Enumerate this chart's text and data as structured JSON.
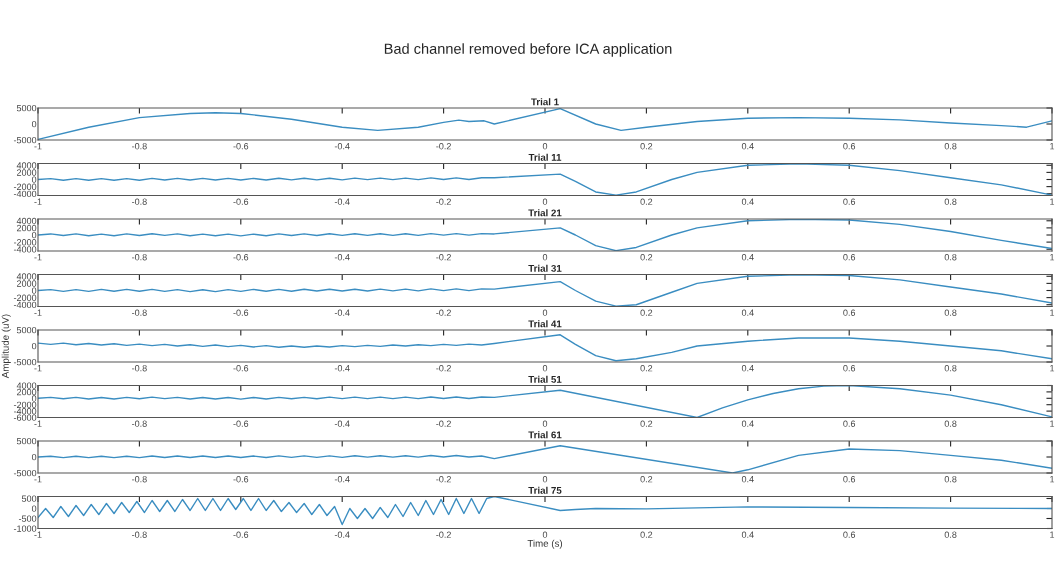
{
  "chart_data": [
    {
      "type": "line",
      "title": "Trial 1",
      "annotations": [
        "Bad channel removed before ICA application"
      ],
      "xlim": [
        -1,
        1
      ],
      "xticks": [
        -1,
        -0.8,
        -0.6,
        -0.4,
        -0.2,
        0,
        0.2,
        0.4,
        0.6,
        0.8,
        1
      ],
      "ylim": [
        -5000,
        5000
      ],
      "yticks": [
        -5000,
        0,
        5000
      ],
      "series": [
        {
          "color": "#3a8dc1",
          "x": [
            -1,
            -0.9,
            -0.8,
            -0.7,
            -0.65,
            -0.6,
            -0.5,
            -0.4,
            -0.33,
            -0.25,
            -0.2,
            -0.17,
            -0.15,
            -0.12,
            -0.1,
            0.03,
            0.1,
            0.15,
            0.2,
            0.3,
            0.4,
            0.5,
            0.6,
            0.7,
            0.8,
            0.9,
            0.95,
            1.0
          ],
          "values": [
            -4800,
            -1000,
            2000,
            3300,
            3500,
            3300,
            1500,
            -1000,
            -2000,
            -1000,
            500,
            1200,
            800,
            1000,
            0,
            4800,
            0,
            -2000,
            -1000,
            800,
            1800,
            2000,
            1800,
            1300,
            300,
            -500,
            -1000,
            1000
          ]
        }
      ]
    },
    {
      "type": "line",
      "title": "Trial 11",
      "xlim": [
        -1,
        1
      ],
      "xticks": [
        -1,
        -0.8,
        -0.6,
        -0.4,
        -0.2,
        0,
        0.2,
        0.4,
        0.6,
        0.8,
        1
      ],
      "ylim": [
        -4500,
        4500
      ],
      "yticks": [
        -4000,
        -2000,
        0,
        2000,
        4000
      ],
      "series": [
        {
          "color": "#3a8dc1",
          "x": [
            -1,
            -0.975,
            -0.95,
            -0.925,
            -0.9,
            -0.875,
            -0.85,
            -0.825,
            -0.8,
            -0.775,
            -0.75,
            -0.725,
            -0.7,
            -0.675,
            -0.65,
            -0.625,
            -0.6,
            -0.575,
            -0.55,
            -0.525,
            -0.5,
            -0.475,
            -0.45,
            -0.425,
            -0.4,
            -0.375,
            -0.35,
            -0.325,
            -0.3,
            -0.275,
            -0.25,
            -0.225,
            -0.2,
            -0.175,
            -0.15,
            -0.125,
            -0.1,
            0.03,
            0.06,
            0.1,
            0.14,
            0.18,
            0.25,
            0.3,
            0.4,
            0.5,
            0.6,
            0.7,
            0.8,
            0.9,
            1.0
          ],
          "values": [
            0,
            250,
            -200,
            250,
            -200,
            250,
            -200,
            250,
            -200,
            300,
            -150,
            300,
            -150,
            300,
            -150,
            300,
            -150,
            300,
            -150,
            350,
            -100,
            350,
            -100,
            350,
            -100,
            400,
            -50,
            400,
            -50,
            400,
            -50,
            450,
            0,
            450,
            0,
            500,
            500,
            1500,
            -500,
            -3500,
            -4400,
            -3500,
            0,
            2000,
            4000,
            4400,
            4000,
            2500,
            500,
            -1500,
            -4400
          ]
        }
      ]
    },
    {
      "type": "line",
      "title": "Trial 21",
      "xlim": [
        -1,
        1
      ],
      "xticks": [
        -1,
        -0.8,
        -0.6,
        -0.4,
        -0.2,
        0,
        0.2,
        0.4,
        0.6,
        0.8,
        1
      ],
      "ylim": [
        -4500,
        4500
      ],
      "yticks": [
        -4000,
        -2000,
        0,
        2000,
        4000
      ],
      "series": [
        {
          "color": "#3a8dc1",
          "x": [
            -1,
            -0.975,
            -0.95,
            -0.925,
            -0.9,
            -0.875,
            -0.85,
            -0.825,
            -0.8,
            -0.775,
            -0.75,
            -0.725,
            -0.7,
            -0.675,
            -0.65,
            -0.625,
            -0.6,
            -0.575,
            -0.55,
            -0.525,
            -0.5,
            -0.475,
            -0.45,
            -0.425,
            -0.4,
            -0.375,
            -0.35,
            -0.325,
            -0.3,
            -0.275,
            -0.25,
            -0.225,
            -0.2,
            -0.175,
            -0.15,
            -0.125,
            -0.1,
            0.03,
            0.06,
            0.1,
            0.14,
            0.18,
            0.25,
            0.3,
            0.4,
            0.5,
            0.6,
            0.7,
            0.8,
            0.9,
            1.0
          ],
          "values": [
            0,
            300,
            -150,
            300,
            -200,
            250,
            -200,
            300,
            -150,
            350,
            -100,
            300,
            -200,
            250,
            -200,
            250,
            -250,
            250,
            -200,
            300,
            -150,
            300,
            -150,
            350,
            -100,
            350,
            -100,
            350,
            -100,
            350,
            -100,
            400,
            -50,
            400,
            -50,
            400,
            300,
            2000,
            0,
            -3000,
            -4400,
            -3500,
            0,
            2000,
            4000,
            4400,
            4200,
            3000,
            1000,
            -1500,
            -3800
          ]
        }
      ]
    },
    {
      "type": "line",
      "title": "Trial 31",
      "xlim": [
        -1,
        1
      ],
      "xticks": [
        -1,
        -0.8,
        -0.6,
        -0.4,
        -0.2,
        0,
        0.2,
        0.4,
        0.6,
        0.8,
        1
      ],
      "ylim": [
        -4500,
        4500
      ],
      "yticks": [
        -4000,
        -2000,
        0,
        2000,
        4000
      ],
      "series": [
        {
          "color": "#3a8dc1",
          "x": [
            -1,
            -0.975,
            -0.95,
            -0.925,
            -0.9,
            -0.875,
            -0.85,
            -0.825,
            -0.8,
            -0.775,
            -0.75,
            -0.725,
            -0.7,
            -0.675,
            -0.65,
            -0.625,
            -0.6,
            -0.575,
            -0.55,
            -0.525,
            -0.5,
            -0.475,
            -0.45,
            -0.425,
            -0.4,
            -0.375,
            -0.35,
            -0.325,
            -0.3,
            -0.275,
            -0.25,
            -0.225,
            -0.2,
            -0.175,
            -0.15,
            -0.125,
            -0.1,
            0.03,
            0.06,
            0.1,
            0.14,
            0.18,
            0.25,
            0.3,
            0.4,
            0.5,
            0.6,
            0.7,
            0.8,
            0.9,
            1.0
          ],
          "values": [
            0,
            250,
            -250,
            250,
            -250,
            300,
            -200,
            300,
            -200,
            300,
            -250,
            250,
            -300,
            200,
            -300,
            250,
            -250,
            300,
            -200,
            300,
            -200,
            350,
            -150,
            350,
            -150,
            350,
            -150,
            400,
            -100,
            400,
            -100,
            450,
            -50,
            450,
            -50,
            450,
            400,
            2500,
            0,
            -3000,
            -4400,
            -4000,
            -500,
            2000,
            4000,
            4400,
            4200,
            3000,
            1000,
            -1000,
            -3500
          ]
        }
      ]
    },
    {
      "type": "line",
      "title": "Trial 41",
      "ylabel": "Amplitude (uV)",
      "xlim": [
        -1,
        1
      ],
      "xticks": [
        -1,
        -0.8,
        -0.6,
        -0.4,
        -0.2,
        0,
        0.2,
        0.4,
        0.6,
        0.8,
        1
      ],
      "ylim": [
        -5000,
        5000
      ],
      "yticks": [
        -5000,
        0,
        5000
      ],
      "series": [
        {
          "color": "#3a8dc1",
          "x": [
            -1,
            -0.975,
            -0.95,
            -0.925,
            -0.9,
            -0.875,
            -0.85,
            -0.825,
            -0.8,
            -0.775,
            -0.75,
            -0.725,
            -0.7,
            -0.675,
            -0.65,
            -0.625,
            -0.6,
            -0.575,
            -0.55,
            -0.525,
            -0.5,
            -0.475,
            -0.45,
            -0.425,
            -0.4,
            -0.375,
            -0.35,
            -0.325,
            -0.3,
            -0.275,
            -0.25,
            -0.225,
            -0.2,
            -0.175,
            -0.15,
            -0.125,
            -0.1,
            0.03,
            0.06,
            0.1,
            0.14,
            0.18,
            0.25,
            0.3,
            0.4,
            0.5,
            0.6,
            0.7,
            0.8,
            0.9,
            1.0
          ],
          "values": [
            900,
            500,
            900,
            400,
            800,
            300,
            700,
            200,
            600,
            100,
            500,
            0,
            400,
            -100,
            300,
            -200,
            200,
            -300,
            100,
            -400,
            0,
            -400,
            0,
            -300,
            100,
            -200,
            200,
            -100,
            300,
            0,
            400,
            100,
            500,
            200,
            600,
            300,
            800,
            3500,
            500,
            -3000,
            -4600,
            -4000,
            -2000,
            0,
            1500,
            2500,
            2500,
            1500,
            0,
            -1500,
            -4000
          ]
        }
      ]
    },
    {
      "type": "line",
      "title": "Trial 51",
      "xlim": [
        -1,
        1
      ],
      "xticks": [
        -1,
        -0.8,
        -0.6,
        -0.4,
        -0.2,
        0,
        0.2,
        0.4,
        0.6,
        0.8,
        1
      ],
      "ylim": [
        -6000,
        4000
      ],
      "yticks": [
        -6000,
        -4000,
        -2000,
        0,
        2000,
        4000
      ],
      "series": [
        {
          "color": "#3a8dc1",
          "x": [
            -1,
            -0.975,
            -0.95,
            -0.925,
            -0.9,
            -0.875,
            -0.85,
            -0.825,
            -0.8,
            -0.775,
            -0.75,
            -0.725,
            -0.7,
            -0.675,
            -0.65,
            -0.625,
            -0.6,
            -0.575,
            -0.55,
            -0.525,
            -0.5,
            -0.475,
            -0.45,
            -0.425,
            -0.4,
            -0.375,
            -0.35,
            -0.325,
            -0.3,
            -0.275,
            -0.25,
            -0.225,
            -0.2,
            -0.175,
            -0.15,
            -0.125,
            -0.1,
            0.03,
            0.3,
            0.35,
            0.4,
            0.45,
            0.5,
            0.55,
            0.6,
            0.7,
            0.8,
            0.9,
            1.0
          ],
          "values": [
            0,
            300,
            -150,
            300,
            -200,
            250,
            -200,
            300,
            -150,
            350,
            -100,
            300,
            -200,
            250,
            -200,
            250,
            -250,
            250,
            -200,
            300,
            -150,
            300,
            -150,
            350,
            -100,
            350,
            -100,
            350,
            -100,
            350,
            -100,
            400,
            -50,
            400,
            -50,
            400,
            300,
            2500,
            -6000,
            -3000,
            -500,
            1500,
            3000,
            3800,
            4000,
            3000,
            1000,
            -2000,
            -5800
          ]
        }
      ]
    },
    {
      "type": "line",
      "title": "Trial 61",
      "xlim": [
        -1,
        1
      ],
      "xticks": [
        -1,
        -0.8,
        -0.6,
        -0.4,
        -0.2,
        0,
        0.2,
        0.4,
        0.6,
        0.8,
        1
      ],
      "ylim": [
        -5000,
        5000
      ],
      "yticks": [
        -5000,
        0,
        5000
      ],
      "series": [
        {
          "color": "#3a8dc1",
          "x": [
            -1,
            -0.975,
            -0.95,
            -0.925,
            -0.9,
            -0.875,
            -0.85,
            -0.825,
            -0.8,
            -0.775,
            -0.75,
            -0.725,
            -0.7,
            -0.675,
            -0.65,
            -0.625,
            -0.6,
            -0.575,
            -0.55,
            -0.525,
            -0.5,
            -0.475,
            -0.45,
            -0.425,
            -0.4,
            -0.375,
            -0.35,
            -0.325,
            -0.3,
            -0.275,
            -0.25,
            -0.225,
            -0.2,
            -0.175,
            -0.15,
            -0.125,
            -0.1,
            0.03,
            0.37,
            0.4,
            0.5,
            0.6,
            0.7,
            0.8,
            0.9,
            1.0
          ],
          "values": [
            0,
            250,
            -200,
            250,
            -200,
            250,
            -200,
            250,
            -200,
            300,
            -150,
            300,
            -150,
            300,
            -150,
            300,
            -150,
            300,
            -150,
            350,
            -100,
            350,
            -100,
            350,
            -100,
            400,
            -50,
            400,
            -50,
            400,
            -50,
            450,
            0,
            450,
            0,
            300,
            -500,
            3500,
            -5000,
            -4000,
            500,
            2500,
            2000,
            500,
            -1000,
            -3500
          ]
        }
      ]
    },
    {
      "type": "line",
      "title": "Trial 75",
      "xlabel": "Time (s)",
      "xlim": [
        -1,
        1
      ],
      "xticks": [
        -1,
        -0.8,
        -0.6,
        -0.4,
        -0.2,
        0,
        0.2,
        0.4,
        0.6,
        0.8,
        1
      ],
      "ylim": [
        -1000,
        600
      ],
      "yticks": [
        -1000,
        -500,
        0,
        500
      ],
      "series": [
        {
          "color": "#3a8dc1",
          "x": [
            -1,
            -0.985,
            -0.97,
            -0.955,
            -0.94,
            -0.925,
            -0.91,
            -0.895,
            -0.88,
            -0.865,
            -0.85,
            -0.835,
            -0.82,
            -0.805,
            -0.79,
            -0.775,
            -0.76,
            -0.745,
            -0.73,
            -0.715,
            -0.7,
            -0.685,
            -0.67,
            -0.655,
            -0.64,
            -0.625,
            -0.61,
            -0.595,
            -0.58,
            -0.565,
            -0.55,
            -0.535,
            -0.52,
            -0.505,
            -0.49,
            -0.475,
            -0.46,
            -0.445,
            -0.43,
            -0.415,
            -0.4,
            -0.385,
            -0.37,
            -0.355,
            -0.34,
            -0.325,
            -0.31,
            -0.295,
            -0.28,
            -0.265,
            -0.25,
            -0.235,
            -0.22,
            -0.205,
            -0.19,
            -0.175,
            -0.16,
            -0.145,
            -0.13,
            -0.115,
            -0.1,
            0.03,
            0.06,
            0.1,
            0.2,
            0.4,
            0.6,
            0.8,
            1.0
          ],
          "values": [
            -450,
            0,
            -450,
            100,
            -400,
            150,
            -350,
            200,
            -300,
            250,
            -250,
            300,
            -200,
            350,
            -200,
            400,
            -150,
            400,
            -150,
            450,
            -100,
            500,
            -100,
            500,
            -100,
            500,
            -50,
            500,
            -100,
            500,
            -100,
            400,
            -150,
            300,
            -200,
            250,
            -300,
            200,
            -350,
            100,
            -800,
            0,
            -500,
            0,
            -500,
            50,
            -450,
            200,
            -400,
            300,
            -350,
            400,
            -300,
            450,
            -300,
            500,
            -250,
            500,
            -250,
            500,
            600,
            -100,
            -50,
            0,
            -20,
            80,
            50,
            20,
            0
          ]
        }
      ]
    }
  ]
}
